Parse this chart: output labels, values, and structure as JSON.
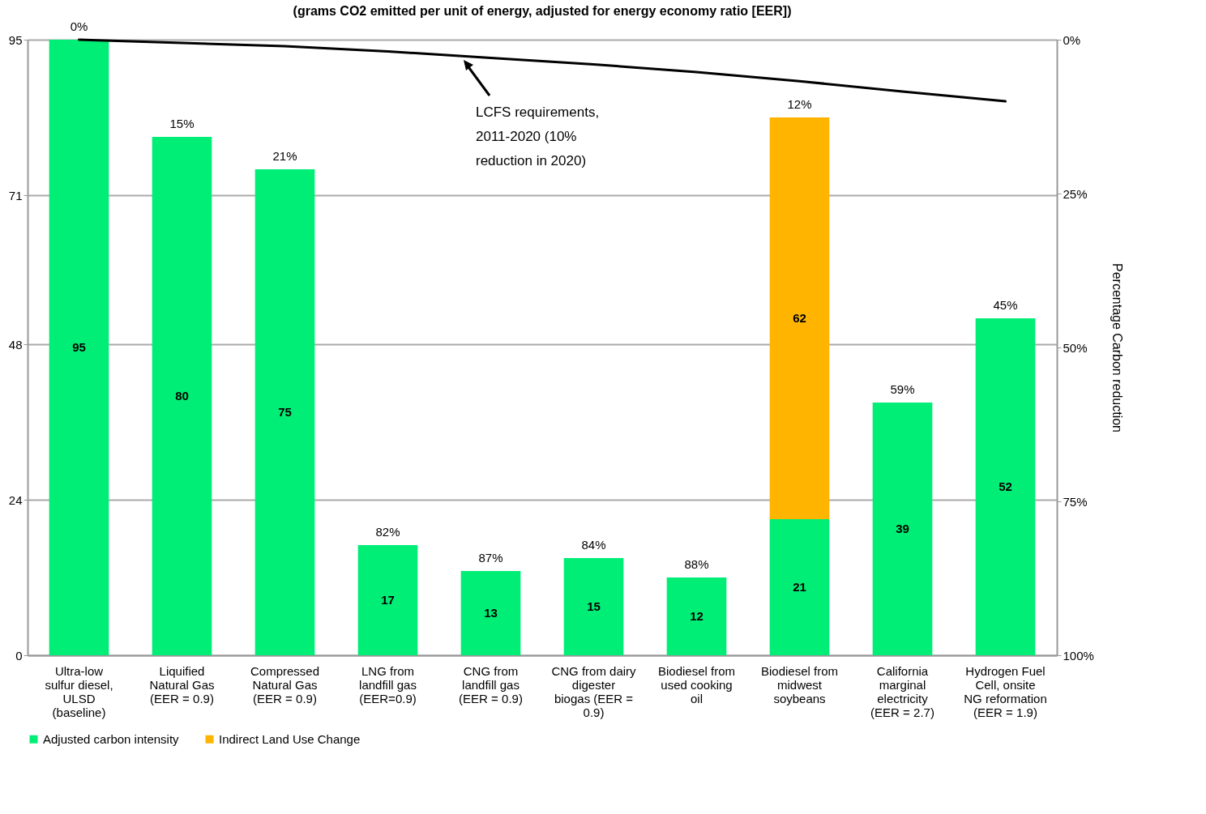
{
  "chart_data": {
    "type": "bar",
    "title": "(grams CO2 emitted per unit of energy, adjusted for energy economy ratio [EER])",
    "y2label": "Percentage Carbon reduction",
    "categories": [
      "Ultra-low sulfur diesel, ULSD (baseline)",
      "Liquified Natural Gas (EER = 0.9)",
      "Compressed Natural Gas (EER = 0.9)",
      "LNG from landfill gas (EER=0.9)",
      "CNG from landfill gas (EER = 0.9)",
      "CNG from dairy digester biogas (EER = 0.9)",
      "Biodiesel from used cooking oil",
      "Biodiesel from midwest soybeans",
      "California marginal electricity (EER = 2.7)",
      "Hydrogen Fuel Cell, onsite NG reformation (EER = 1.9)"
    ],
    "stacked": true,
    "series": [
      {
        "name": "Adjusted carbon intensity",
        "color": "#00ee76",
        "values": [
          95,
          80,
          75,
          17,
          13,
          15,
          12,
          21,
          39,
          52
        ],
        "value_labels": [
          "95",
          "80",
          "75",
          "17",
          "13",
          "15",
          "12",
          "21",
          "39",
          "52"
        ]
      },
      {
        "name": "Indirect Land Use Change",
        "color": "#ffb400",
        "values": [
          null,
          null,
          null,
          null,
          null,
          null,
          null,
          62,
          null,
          null
        ],
        "value_labels": [
          null,
          null,
          null,
          null,
          null,
          null,
          null,
          "62",
          null,
          null
        ]
      },
      {
        "type": "line",
        "color": "#000000",
        "values": [
          95,
          94.5,
          94,
          93.2,
          92.2,
          91.2,
          90,
          88.6,
          87,
          85.5
        ]
      }
    ],
    "ylim": [
      0,
      95
    ],
    "yticks": [
      0,
      24,
      48,
      71,
      95
    ],
    "y2lim": [
      100,
      0
    ],
    "y2ticks": [
      {
        "value": 100,
        "label": "100%"
      },
      {
        "value": 75,
        "label": "75%"
      },
      {
        "value": 50,
        "label": "50%"
      },
      {
        "value": 25,
        "label": "25%"
      },
      {
        "value": 0,
        "label": "0%"
      }
    ],
    "grid": "y",
    "legend": "bottom",
    "annotations": [
      {
        "text": "0%",
        "x": "Ultra-low sulfur diesel, ULSD (baseline)",
        "y": 95
      },
      {
        "text": "15%",
        "x": "Liquified Natural Gas (EER = 0.9)",
        "y": 80
      },
      {
        "text": "21%",
        "x": "Compressed Natural Gas (EER = 0.9)",
        "y": 75
      },
      {
        "text": "82%",
        "x": "LNG from landfill gas (EER=0.9)",
        "y": 17
      },
      {
        "text": "87%",
        "x": "CNG from landfill gas (EER = 0.9)",
        "y": 13
      },
      {
        "text": "84%",
        "x": "CNG from dairy digester biogas (EER = 0.9)",
        "y": 15
      },
      {
        "text": "88%",
        "x": "Biodiesel from used cooking oil",
        "y": 12
      },
      {
        "text": "12%",
        "x": "Biodiesel from midwest soybeans",
        "y": 83
      },
      {
        "text": "59%",
        "x": "California marginal electricity (EER = 2.7)",
        "y": 39
      },
      {
        "text": "45%",
        "x": "Hydrogen Fuel Cell, onsite NG reformation (EER = 1.9)",
        "y": 52
      },
      "LCFS requirements, 2011-2020 (10% reduction in 2020)"
    ]
  }
}
